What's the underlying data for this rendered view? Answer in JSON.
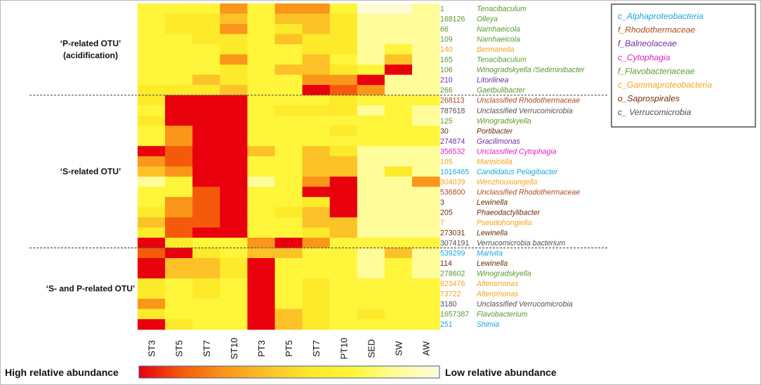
{
  "palette": {
    "scale": [
      "#e8000c",
      "#f55a0c",
      "#fa9619",
      "#fcc228",
      "#fdea2a",
      "#fff53a",
      "#fffc9a",
      "#fffbd6"
    ],
    "taxa": {
      "alpha": "#19a6dc",
      "rhodo": "#b04a1c",
      "balneo": "#7030a0",
      "cyto": "#e020c0",
      "flavo": "#5a9a2c",
      "gamma": "#f6a41a",
      "sapro": "#6b2e0c",
      "verruco": "#505050"
    }
  },
  "chart_data": {
    "type": "heatmap",
    "columns": [
      "ST3",
      "ST5",
      "ST7",
      "ST10",
      "PT3",
      "PT5",
      "ST7",
      "PT10",
      "SED",
      "SW",
      "AW"
    ],
    "color_scale": {
      "left_label": "High relative abundance",
      "right_label": "Low relative abundance",
      "levels": "0 = high relative abundance (red) ... 7 = low relative abundance (pale yellow)"
    },
    "groups": [
      {
        "label_lines": [
          "‘P-related OTU’",
          "(acidification)"
        ],
        "start_row": 0,
        "end_row": 8
      },
      {
        "label_lines": [
          "‘S-related OTU’"
        ],
        "start_row": 9,
        "end_row": 23
      },
      {
        "label_lines": [
          "‘S- and P-related OTU’"
        ],
        "start_row": 24,
        "end_row": 31
      }
    ],
    "rows": [
      {
        "id": "1",
        "name": "Tenacibaculum",
        "taxon": "flavo",
        "values": [
          5,
          5,
          5,
          2,
          5,
          2,
          2,
          5,
          7,
          7,
          6
        ]
      },
      {
        "id": "168126",
        "name": "Olleya",
        "taxon": "flavo",
        "values": [
          5,
          4,
          4,
          3,
          5,
          3,
          3,
          4,
          6,
          6,
          6
        ]
      },
      {
        "id": "66",
        "name": "Namhaeicola",
        "taxon": "flavo",
        "values": [
          5,
          4,
          4,
          2,
          5,
          4,
          3,
          4,
          6,
          6,
          6
        ]
      },
      {
        "id": "109",
        "name": "Namhaeicola",
        "taxon": "flavo",
        "values": [
          5,
          5,
          4,
          4,
          5,
          3,
          4,
          4,
          6,
          6,
          6
        ]
      },
      {
        "id": "140",
        "name": "Bermanella",
        "taxon": "gamma",
        "values": [
          5,
          5,
          5,
          4,
          5,
          5,
          4,
          4,
          6,
          5,
          6
        ]
      },
      {
        "id": "165",
        "name": "Tenacibaculum",
        "taxon": "flavo",
        "values": [
          5,
          5,
          5,
          2,
          5,
          5,
          3,
          5,
          6,
          3,
          6
        ]
      },
      {
        "id": "106",
        "name": "Winogradskyella  /Sediminibacter",
        "taxon": "flavo",
        "values": [
          5,
          5,
          5,
          4,
          5,
          3,
          3,
          4,
          5,
          0,
          6
        ]
      },
      {
        "id": "210",
        "name": "Litorilinea",
        "taxon": "balneo",
        "values": [
          5,
          5,
          3,
          4,
          5,
          5,
          2,
          2,
          0,
          6,
          6
        ]
      },
      {
        "id": "266",
        "name": "Gaetbulibacter",
        "taxon": "flavo",
        "values": [
          4,
          4,
          4,
          3,
          5,
          5,
          0,
          1,
          2,
          6,
          6
        ]
      },
      {
        "id": "268113",
        "name": "Unclassified  Rhodothermaceae",
        "taxon": "rhodo",
        "values": [
          4,
          0,
          0,
          0,
          5,
          5,
          5,
          4,
          5,
          5,
          5
        ]
      },
      {
        "id": "787618",
        "name": "Unclassified  Verrucomicrobia",
        "taxon": "verruco",
        "values": [
          5,
          0,
          0,
          0,
          5,
          4,
          4,
          4,
          6,
          5,
          6
        ]
      },
      {
        "id": "125",
        "name": "Winogradskyella",
        "taxon": "flavo",
        "values": [
          4,
          0,
          0,
          0,
          5,
          5,
          5,
          5,
          5,
          5,
          6
        ]
      },
      {
        "id": "30",
        "name": "Portibacter",
        "taxon": "sapro",
        "values": [
          5,
          2,
          0,
          0,
          5,
          5,
          5,
          4,
          5,
          5,
          5
        ]
      },
      {
        "id": "274874",
        "name": "Gracilimonas",
        "taxon": "balneo",
        "values": [
          5,
          2,
          0,
          0,
          5,
          5,
          5,
          5,
          5,
          5,
          5
        ]
      },
      {
        "id": "356532",
        "name": "Unclassified  Cytophagia",
        "taxon": "cyto",
        "values": [
          0,
          1,
          0,
          0,
          3,
          5,
          3,
          4,
          6,
          6,
          6
        ]
      },
      {
        "id": "105",
        "name": "Marinicella",
        "taxon": "gamma",
        "values": [
          2,
          1,
          0,
          0,
          5,
          5,
          3,
          3,
          6,
          6,
          6
        ]
      },
      {
        "id": "1016465",
        "name": "Candidatus Pelagibacter",
        "taxon": "alpha",
        "values": [
          3,
          2,
          0,
          0,
          5,
          5,
          3,
          3,
          6,
          4,
          6
        ]
      },
      {
        "id": "304039",
        "name": "Wenzhouxiangella",
        "taxon": "gamma",
        "values": [
          6,
          5,
          0,
          0,
          6,
          5,
          2,
          0,
          6,
          6,
          2
        ]
      },
      {
        "id": "536800",
        "name": "Unclassified  Rhodothermaceae",
        "taxon": "rhodo",
        "values": [
          5,
          5,
          1,
          0,
          5,
          5,
          0,
          0,
          6,
          6,
          6
        ]
      },
      {
        "id": "3",
        "name": "Lewinella",
        "taxon": "sapro",
        "values": [
          5,
          2,
          1,
          0,
          5,
          5,
          4,
          0,
          6,
          6,
          6
        ]
      },
      {
        "id": "205",
        "name": "Phaeodactylibacter",
        "taxon": "sapro",
        "values": [
          4,
          2,
          1,
          0,
          5,
          4,
          3,
          0,
          6,
          6,
          6
        ]
      },
      {
        "id": "7",
        "name": "Pseudohongiella",
        "taxon": "gamma",
        "values": [
          3,
          1,
          1,
          0,
          5,
          5,
          3,
          3,
          6,
          6,
          6
        ]
      },
      {
        "id": "273031",
        "name": "Lewinella",
        "taxon": "sapro",
        "values": [
          4,
          1,
          0,
          0,
          5,
          5,
          4,
          3,
          6,
          6,
          6
        ]
      },
      {
        "id": "3074191",
        "name": "Verrucomicrobia bacterium",
        "taxon": "verruco",
        "values": [
          0,
          4,
          5,
          5,
          2,
          0,
          2,
          5,
          5,
          5,
          5
        ]
      },
      {
        "id": "539299",
        "name": "Marivita",
        "taxon": "alpha",
        "values": [
          1,
          0,
          4,
          5,
          3,
          3,
          5,
          5,
          6,
          3,
          6
        ]
      },
      {
        "id": "114",
        "name": "Lewinella",
        "taxon": "sapro",
        "values": [
          0,
          3,
          3,
          4,
          0,
          5,
          5,
          5,
          6,
          5,
          6
        ]
      },
      {
        "id": "278602",
        "name": "Winogradskyella",
        "taxon": "flavo",
        "values": [
          0,
          3,
          3,
          4,
          0,
          5,
          5,
          5,
          6,
          5,
          6
        ]
      },
      {
        "id": "823476",
        "name": "Alteromonas",
        "taxon": "gamma",
        "values": [
          4,
          5,
          4,
          5,
          0,
          5,
          4,
          5,
          5,
          5,
          5
        ]
      },
      {
        "id": "73722",
        "name": "Alteromonas",
        "taxon": "gamma",
        "values": [
          4,
          5,
          4,
          5,
          0,
          5,
          4,
          5,
          5,
          5,
          5
        ]
      },
      {
        "id": "3180",
        "name": "Unclassified  Verrucomicrobia",
        "taxon": "verruco",
        "values": [
          2,
          5,
          5,
          5,
          0,
          5,
          4,
          5,
          5,
          5,
          5
        ]
      },
      {
        "id": "1657387",
        "name": "Flavobacterium",
        "taxon": "flavo",
        "values": [
          4,
          5,
          5,
          5,
          0,
          3,
          4,
          5,
          4,
          5,
          5
        ]
      },
      {
        "id": "251",
        "name": "Shimia",
        "taxon": "alpha",
        "values": [
          0,
          4,
          5,
          5,
          0,
          3,
          4,
          5,
          5,
          5,
          5
        ]
      }
    ],
    "legend": [
      {
        "label": "c_Alphaproteobacteria",
        "taxon": "alpha"
      },
      {
        "label": "f_Rhodothermaceae",
        "taxon": "rhodo"
      },
      {
        "label": "f_Balneolaceae",
        "taxon": "balneo"
      },
      {
        "label": "c_Cytophagia",
        "taxon": "cyto"
      },
      {
        "label": "f_Flavobacteriaceae",
        "taxon": "flavo"
      },
      {
        "label": "c_Gammaproteobacteria",
        "taxon": "gamma"
      },
      {
        "label": "o_Saprospirales",
        "taxon": "sapro"
      },
      {
        "label": "c_ Verrucomicrobia",
        "taxon": "verruco"
      }
    ]
  }
}
